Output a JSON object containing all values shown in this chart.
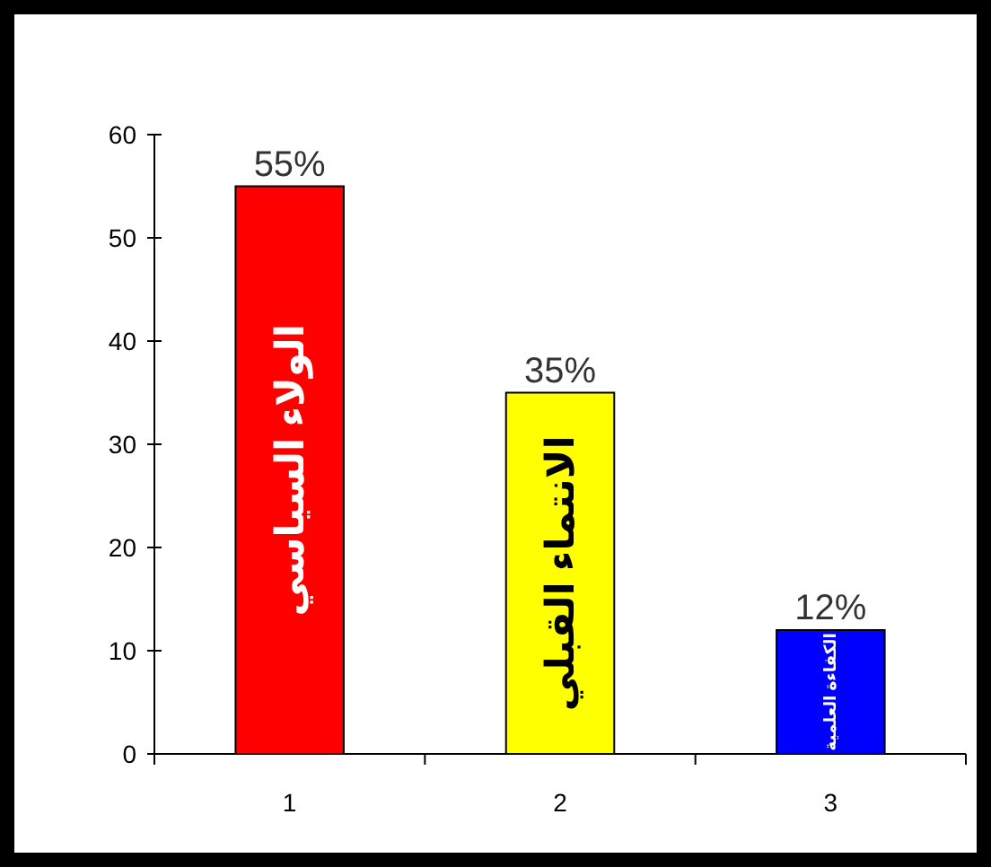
{
  "chart_data": {
    "type": "bar",
    "categories": [
      "1",
      "2",
      "3"
    ],
    "values": [
      55,
      35,
      12
    ],
    "colors": [
      "#ff0000",
      "#ffff00",
      "#0000ff"
    ],
    "value_labels": [
      "55%",
      "35%",
      "12%"
    ],
    "ylim": [
      0,
      60
    ],
    "yticks": [
      0,
      10,
      20,
      30,
      40,
      50,
      60
    ],
    "grid": false,
    "annotations": [
      "الولاء السياسي",
      "الانتماء القبلي",
      "الكفاءة العلمية"
    ]
  }
}
